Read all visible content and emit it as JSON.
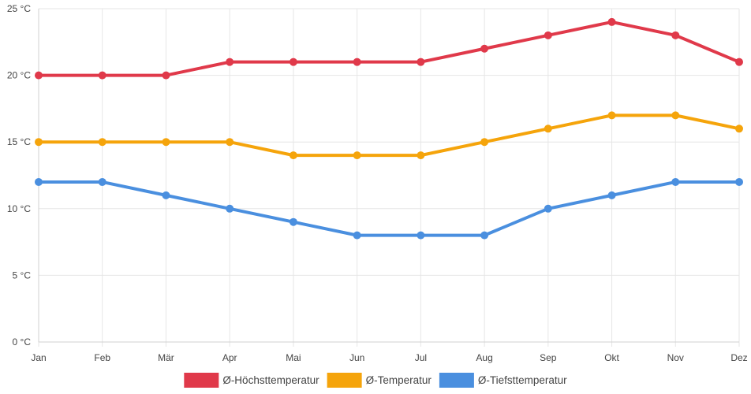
{
  "chart_data": {
    "type": "line",
    "title": "",
    "xlabel": "",
    "ylabel": "",
    "categories": [
      "Jan",
      "Feb",
      "Mär",
      "Apr",
      "Mai",
      "Jun",
      "Jul",
      "Aug",
      "Sep",
      "Okt",
      "Nov",
      "Dez"
    ],
    "ylim": [
      0,
      25
    ],
    "y_ticks": [
      0,
      5,
      10,
      15,
      20,
      25
    ],
    "y_tick_labels": [
      "0 °C",
      "5 °C",
      "10 °C",
      "15 °C",
      "20 °C",
      "25 °C"
    ],
    "grid": true,
    "legend_position": "bottom",
    "series": [
      {
        "name": "Ø-Höchsttemperatur",
        "color": "#e0394a",
        "values": [
          20,
          20,
          20,
          21,
          21,
          21,
          21,
          22,
          23,
          24,
          23,
          21
        ]
      },
      {
        "name": "Ø-Temperatur",
        "color": "#f5a40b",
        "values": [
          15,
          15,
          15,
          15,
          14,
          14,
          14,
          15,
          16,
          17,
          17,
          16
        ]
      },
      {
        "name": "Ø-Tiefsttemperatur",
        "color": "#4a8fdf",
        "values": [
          12,
          12,
          11,
          10,
          9,
          8,
          8,
          8,
          10,
          11,
          12,
          12
        ]
      }
    ]
  }
}
